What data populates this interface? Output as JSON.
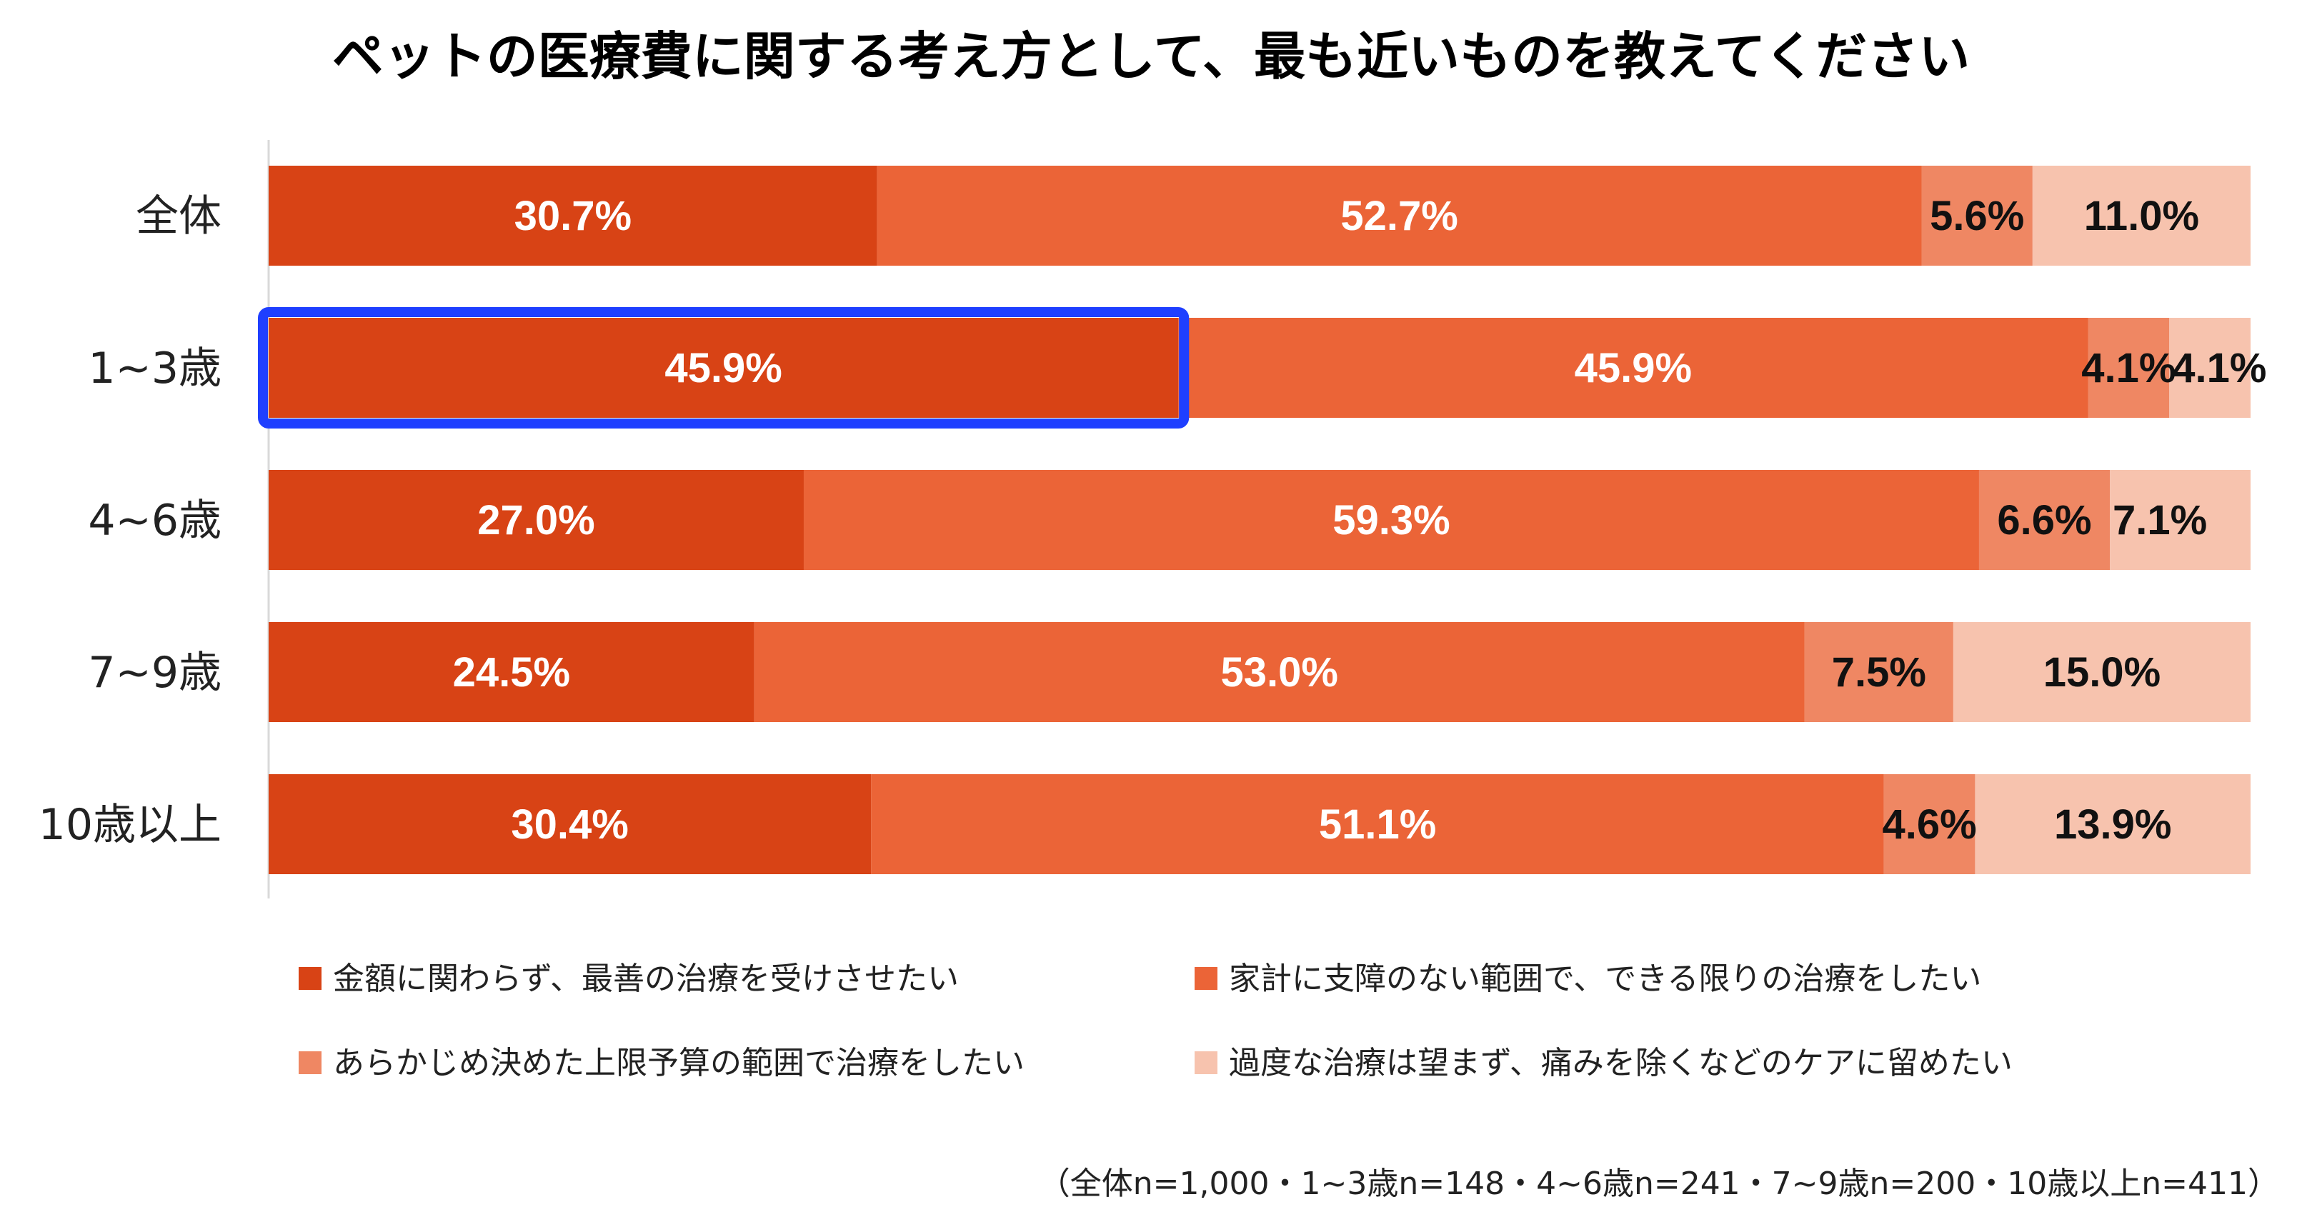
{
  "chart_data": {
    "type": "bar",
    "orientation": "horizontal",
    "stacked": "percent",
    "title": "ペットの医療費に関する考え方として、最も近いものを教えてください",
    "categories": [
      "全体",
      "1~3歳",
      "4~6歳",
      "7~9歳",
      "10歳以上"
    ],
    "series": [
      {
        "name": "金額に関わらず、最善の治療を受けさせたい",
        "color": "#D84315",
        "label_color": "#ffffff",
        "values": [
          30.7,
          45.9,
          27.0,
          24.5,
          30.4
        ],
        "labels": [
          "30.7%",
          "45.9%",
          "27.0%",
          "24.5%",
          "30.4%"
        ]
      },
      {
        "name": "家計に支障のない範囲で、できる限りの治療をしたい",
        "color": "#EB6437",
        "label_color": "#ffffff",
        "values": [
          52.7,
          45.9,
          59.3,
          53.0,
          51.1
        ],
        "labels": [
          "52.7%",
          "45.9%",
          "59.3%",
          "53.0%",
          "51.1%"
        ]
      },
      {
        "name": "あらかじめ決めた上限予算の範囲で治療をしたい",
        "color": "#EF8763",
        "label_color": "#111111",
        "values": [
          5.6,
          4.1,
          6.6,
          7.5,
          4.6
        ],
        "labels": [
          "5.6%",
          "4.1%",
          "6.6%",
          "7.5%",
          "4.6%"
        ]
      },
      {
        "name": "過度な治療は望まず、痛みを除くなどのケアに留めたい",
        "color": "#F7C3AE",
        "label_color": "#111111",
        "values": [
          11.0,
          4.1,
          7.1,
          15.0,
          13.9
        ],
        "labels": [
          "11.0%",
          "4.1%",
          "7.1%",
          "15.0%",
          "13.9%"
        ]
      }
    ],
    "highlight": {
      "category": "1~3歳",
      "series": "金額に関わらず、最善の治療を受けさせたい",
      "color": "#1F3FFF"
    },
    "legend_position": "bottom",
    "grid": false,
    "xlim": [
      0,
      100
    ],
    "note": "（全体n=1,000・1~3歳n=148・4~6歳n=241・7~9歳n=200・10歳以上n=411）"
  }
}
